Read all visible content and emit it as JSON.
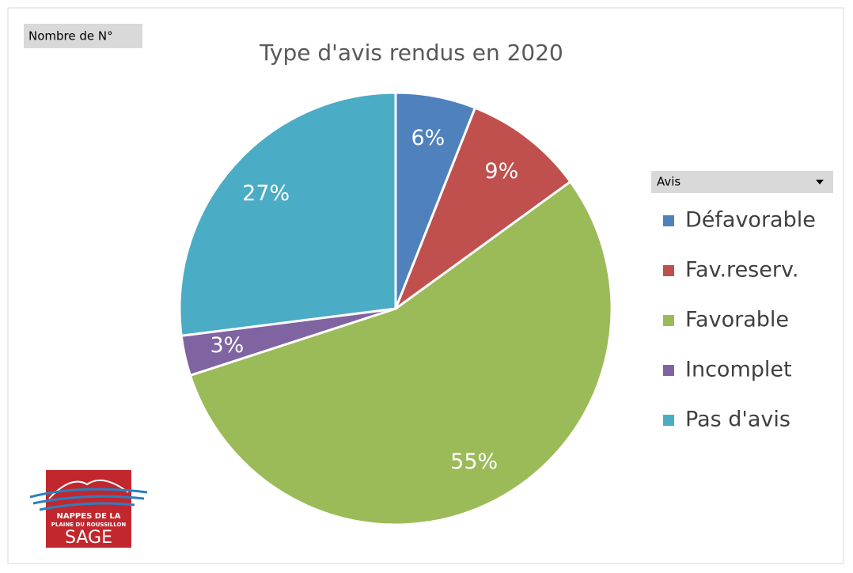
{
  "chart_data": {
    "type": "pie",
    "title": "Type d'avis rendus en 2020",
    "pivot_field": "Nombre de N°",
    "legend_title": "Avis",
    "categories": [
      "Défavorable",
      "Fav.reserv.",
      "Favorable",
      "Incomplet",
      "Pas d'avis"
    ],
    "values": [
      6,
      9,
      55,
      3,
      27
    ],
    "value_labels": [
      "6%",
      "9%",
      "55%",
      "3%",
      "27%"
    ],
    "colors": [
      "#4f81bd",
      "#c0504d",
      "#9bbb59",
      "#8064a2",
      "#4bacc6"
    ],
    "legend": "right"
  },
  "logo": {
    "lines": [
      "NAPPES DE LA",
      "PLAINE DU ROUSSILLON",
      "SAGE"
    ]
  }
}
